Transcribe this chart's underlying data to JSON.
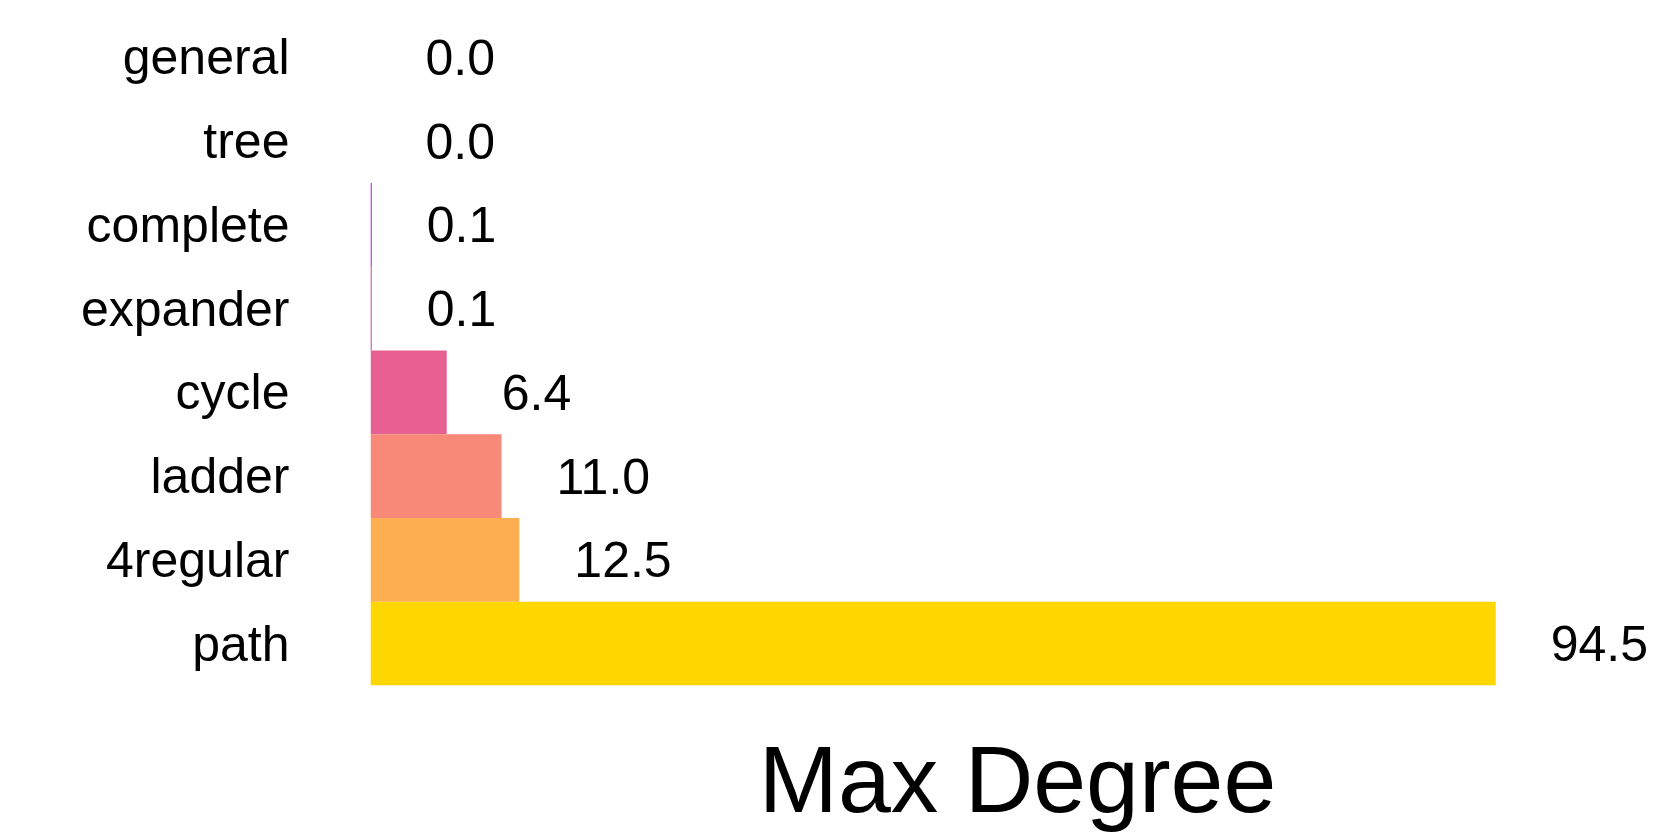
{
  "chart_data": {
    "type": "bar",
    "orientation": "horizontal",
    "xlabel": "Max Degree",
    "categories": [
      "general",
      "tree",
      "complete",
      "expander",
      "cycle",
      "ladder",
      "4regular",
      "path"
    ],
    "values": [
      0.0,
      0.0,
      0.1,
      0.1,
      6.4,
      11.0,
      12.5,
      94.5
    ],
    "colors": [
      "#6e0ff0",
      "#7800a0",
      "#9e08d8",
      "#cc33b2",
      "#e86092",
      "#f88878",
      "#fdae50",
      "#fed700"
    ],
    "value_labels": [
      "0.0",
      "0.0",
      "0.1",
      "0.1",
      "6.4",
      "11.0",
      "12.5",
      "94.5"
    ],
    "grid": false
  }
}
